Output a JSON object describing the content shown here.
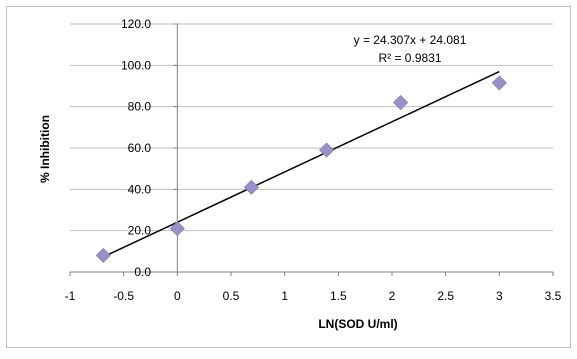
{
  "chart_data": {
    "type": "scatter",
    "xlabel": "LN(SOD U/ml)",
    "ylabel": "% Inhibition",
    "xlim": [
      -1,
      3.5
    ],
    "ylim": [
      0,
      120
    ],
    "x_ticks": [
      "-1",
      "-0.5",
      "0",
      "0.5",
      "1",
      "1.5",
      "2",
      "2.5",
      "3",
      "3.5"
    ],
    "y_ticks": [
      "0.0",
      "20.0",
      "40.0",
      "60.0",
      "80.0",
      "100.0",
      "120.0"
    ],
    "grid": "horizontal",
    "legend": "none",
    "series": [
      {
        "marker": "diamond",
        "color": "#9b8fc7",
        "x": [
          -0.69,
          0.0,
          0.69,
          1.39,
          2.08,
          3.0
        ],
        "y": [
          8.0,
          21.0,
          41.0,
          59.0,
          82.0,
          91.5
        ]
      }
    ],
    "trendline": {
      "type": "linear",
      "slope": 24.307,
      "intercept": 24.081,
      "x_range": [
        -0.69,
        3.0
      ],
      "color": "#000000",
      "equation_label": "y = 24.307x + 24.081",
      "r2_label": "R² = 0.9831"
    }
  }
}
